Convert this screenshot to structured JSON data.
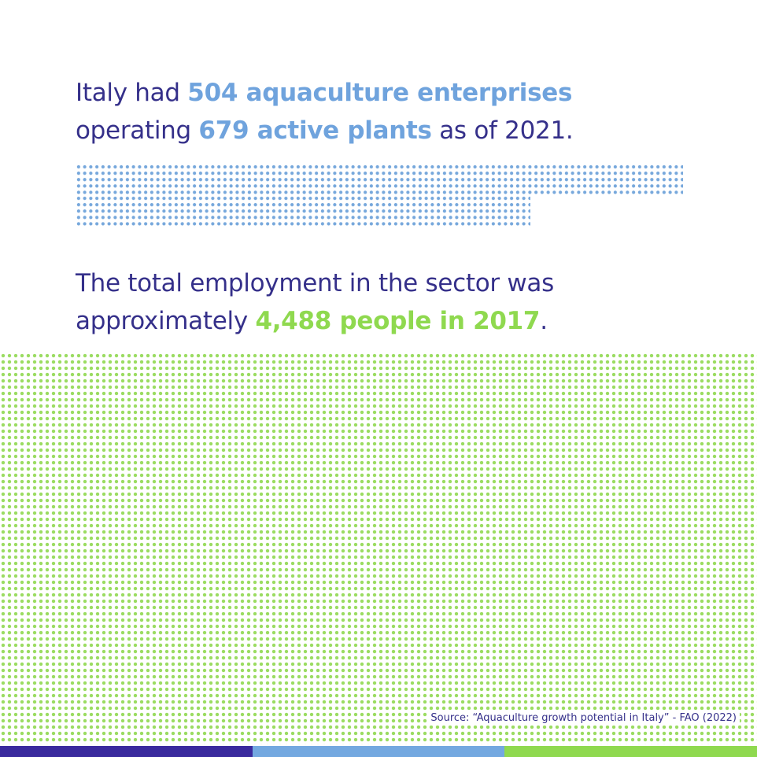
{
  "statements": [
    {
      "parts": [
        "Italy had",
        "504 aquaculture enterprises",
        "operating",
        "679 active plants",
        "as of 2021."
      ]
    },
    {
      "parts": [
        "The total employment in the sector was",
        "approximately",
        "4,488 people in 2017",
        "."
      ]
    }
  ],
  "source": "Source: “Aquaculture growth potential in Italy” - FAO (2022)"
}
